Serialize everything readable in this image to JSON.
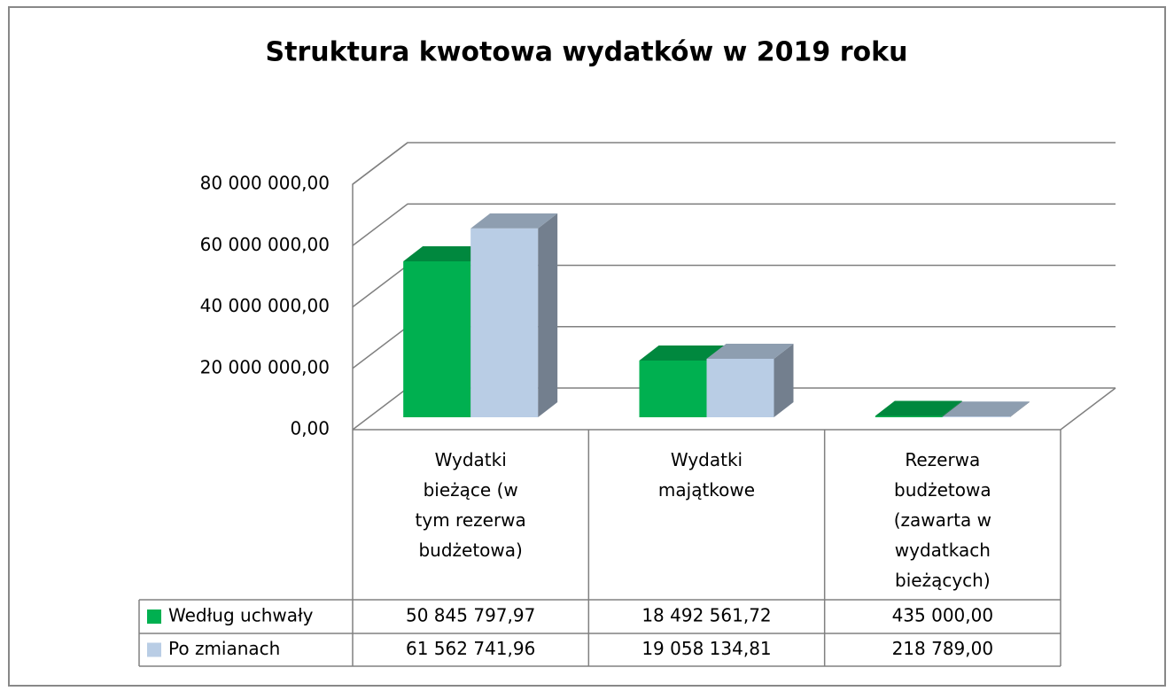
{
  "chart_data": {
    "type": "bar3d",
    "title": "Struktura kwotowa wydatków w 2019 roku",
    "categories": [
      "Wydatki bieżące (w tym rezerwa budżetowa)",
      "Wydatki majątkowe",
      "Rezerwa budżetowa (zawarta w wydatkach bieżących)"
    ],
    "series": [
      {
        "name": "Według uchwały",
        "color": "#00b050",
        "values": [
          50845797.97,
          18492561.72,
          435000.0
        ],
        "value_labels": [
          "50 845 797,97",
          "18 492 561,72",
          "435 000,00"
        ]
      },
      {
        "name": "Po zmianach",
        "color": "#b9cde5",
        "values": [
          61562741.96,
          19058134.81,
          218789.0
        ],
        "value_labels": [
          "61 562 741,96",
          "19 058 134,81",
          "218 789,00"
        ]
      }
    ],
    "ylim": [
      0,
      80000000
    ],
    "yticks": [
      {
        "value": 0,
        "label": "0,00"
      },
      {
        "value": 20000000,
        "label": "20 000 000,00"
      },
      {
        "value": 40000000,
        "label": "40 000 000,00"
      },
      {
        "value": 60000000,
        "label": "60 000 000,00"
      },
      {
        "value": 80000000,
        "label": "80 000 000,00"
      }
    ],
    "grid": true,
    "data_table": true
  }
}
